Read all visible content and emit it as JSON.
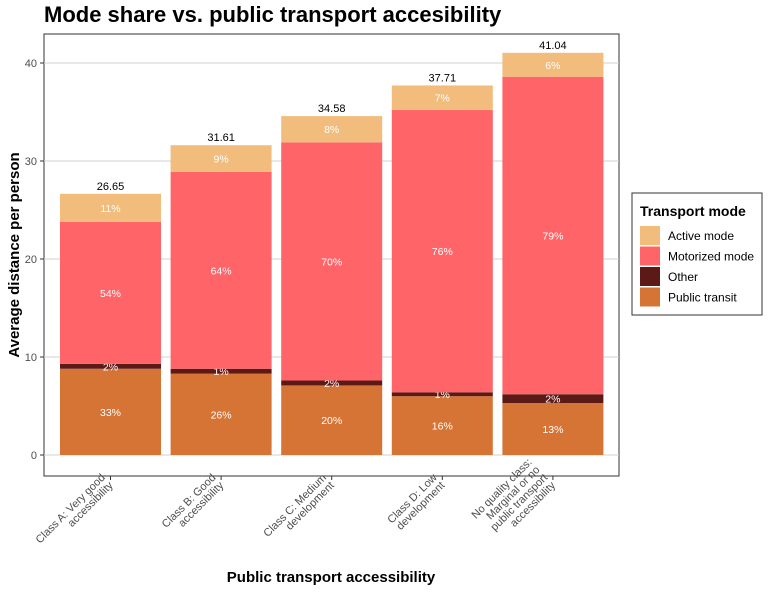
{
  "chart_data": {
    "type": "bar",
    "stacked": true,
    "title": "Mode share vs. public transport accesibility",
    "xlabel": "Public transport accessibility",
    "ylabel": "Average distance per person",
    "ylim": [
      0,
      43
    ],
    "yticks": [
      0,
      10,
      20,
      30,
      40
    ],
    "grid": true,
    "legend": {
      "title": "Transport mode",
      "position": "right"
    },
    "categories": [
      [
        "Class A: Very good",
        "accessibility"
      ],
      [
        "Class B: Good",
        "accessibility"
      ],
      [
        "Class C: Medium",
        "development"
      ],
      [
        "Class D: Low",
        "development"
      ],
      [
        "No quality class:",
        "Marginal or no",
        "public transport",
        "accessibility"
      ]
    ],
    "totals": [
      "26.65",
      "31.61",
      "34.58",
      "37.71",
      "41.04"
    ],
    "series": [
      {
        "name": "Public transit",
        "color": "#D67436",
        "values": [
          8.8,
          8.3,
          7.1,
          6.0,
          5.3
        ],
        "labels": [
          "33%",
          "26%",
          "20%",
          "16%",
          "13%"
        ]
      },
      {
        "name": "Other",
        "color": "#5C1A16",
        "values": [
          0.5,
          0.5,
          0.5,
          0.4,
          0.9
        ],
        "labels": [
          "2%",
          "1%",
          "2%",
          "1%",
          "2%"
        ]
      },
      {
        "name": "Motorized mode",
        "color": "#FF6468",
        "values": [
          14.5,
          20.1,
          24.3,
          28.8,
          32.4
        ],
        "labels": [
          "54%",
          "64%",
          "70%",
          "76%",
          "79%"
        ]
      },
      {
        "name": "Active mode",
        "color": "#F1BC7C",
        "values": [
          2.85,
          2.71,
          2.68,
          2.51,
          2.44
        ],
        "labels": [
          "11%",
          "9%",
          "8%",
          "7%",
          "6%"
        ]
      }
    ],
    "legend_order": [
      "Active mode",
      "Motorized mode",
      "Other",
      "Public transit"
    ]
  }
}
